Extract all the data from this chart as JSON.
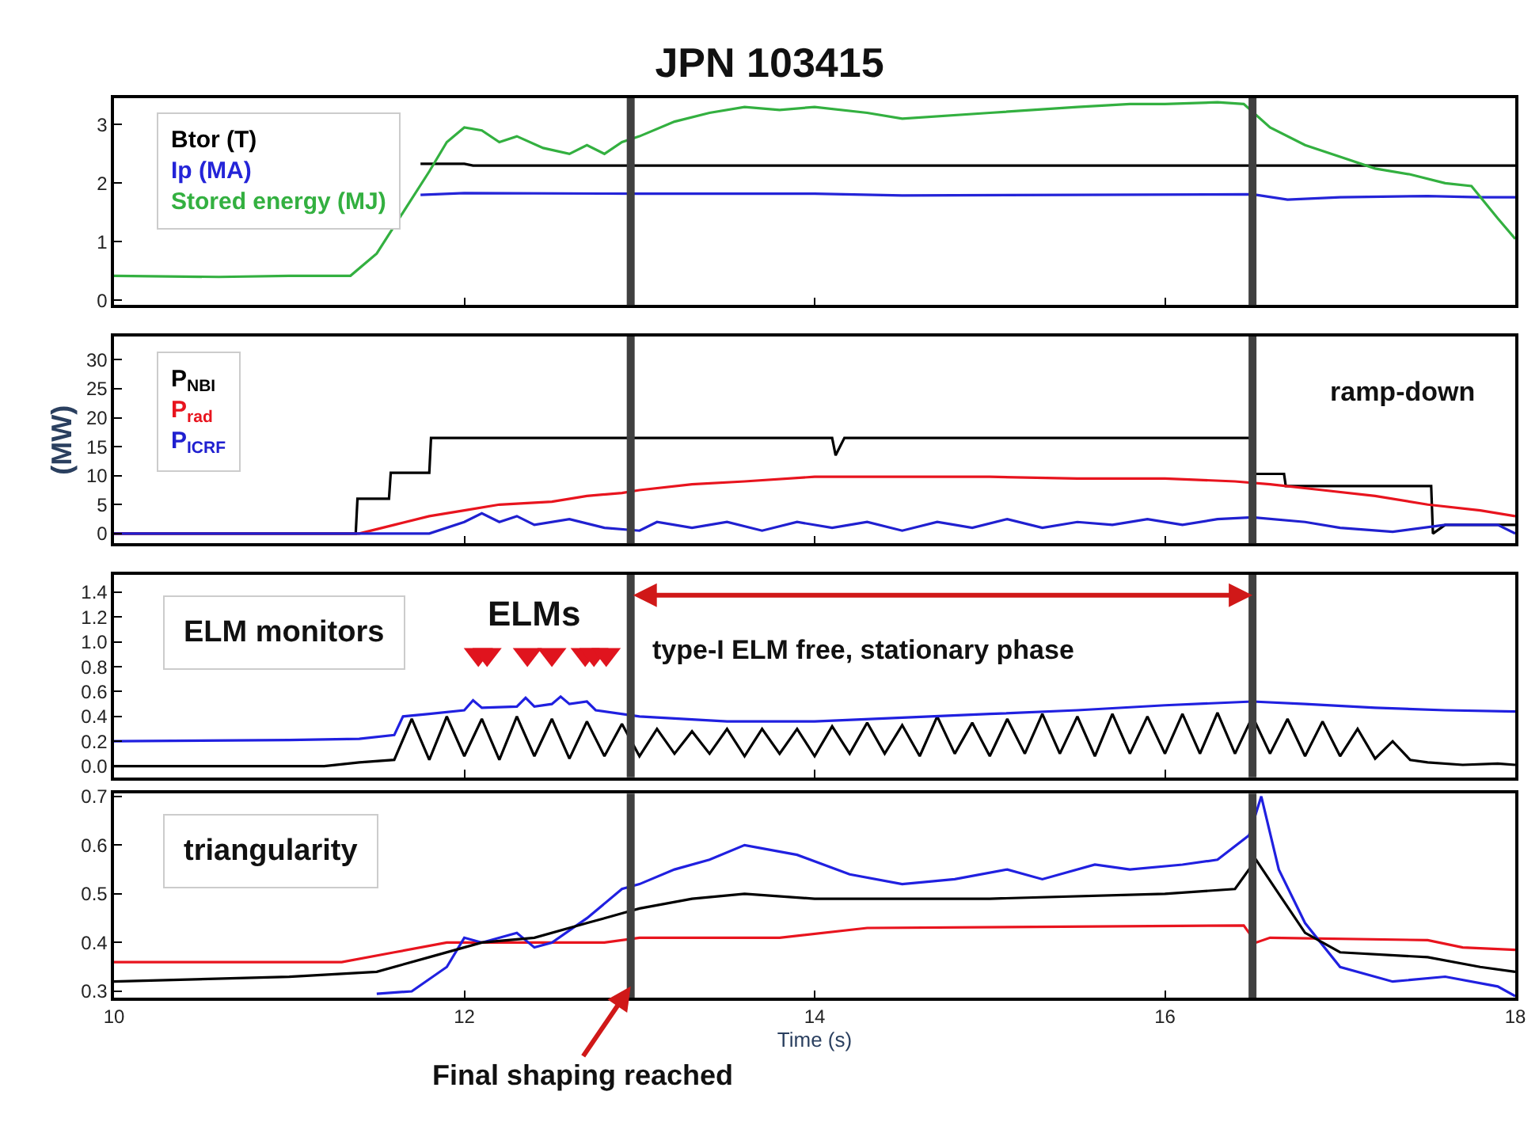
{
  "chart_data": [
    {
      "type": "line",
      "title": "JPN 103415",
      "xlim": [
        10,
        18
      ],
      "xticks": [
        10,
        12,
        14,
        16,
        18
      ],
      "ylim": [
        -0.08,
        3.45
      ],
      "yticks": [
        0,
        1,
        2,
        3
      ],
      "tick_labels": "y",
      "ref_lines": [
        {
          "axis": "x",
          "value": 12.95,
          "color": "#404040"
        },
        {
          "axis": "x",
          "value": 16.5,
          "color": "#404040"
        }
      ],
      "series": [
        {
          "name": "Btor (T)",
          "color": "#000000",
          "x": [
            11.75,
            12.0,
            12.05,
            18.0
          ],
          "values": [
            2.33,
            2.33,
            2.3,
            2.3
          ]
        },
        {
          "name": "Ip (MA)",
          "color": "#2424d8",
          "x": [
            11.75,
            12.0,
            13.0,
            14.0,
            14.5,
            15.5,
            16.5,
            16.7,
            17.0,
            17.5,
            17.8,
            18.0
          ],
          "values": [
            1.8,
            1.83,
            1.82,
            1.82,
            1.79,
            1.8,
            1.81,
            1.72,
            1.76,
            1.78,
            1.76,
            1.76
          ]
        },
        {
          "name": "Stored energy (MJ)",
          "color": "#33b040",
          "x": [
            10.0,
            10.6,
            11.0,
            11.35,
            11.5,
            11.65,
            11.8,
            11.9,
            12.0,
            12.1,
            12.2,
            12.3,
            12.45,
            12.6,
            12.7,
            12.8,
            12.9,
            13.0,
            13.2,
            13.4,
            13.6,
            13.8,
            14.0,
            14.3,
            14.5,
            15.0,
            15.5,
            15.8,
            16.0,
            16.3,
            16.45,
            16.6,
            16.8,
            17.0,
            17.2,
            17.4,
            17.6,
            17.75,
            17.9,
            18.0
          ],
          "values": [
            0.42,
            0.4,
            0.42,
            0.42,
            0.8,
            1.5,
            2.2,
            2.7,
            2.95,
            2.9,
            2.7,
            2.8,
            2.6,
            2.5,
            2.65,
            2.5,
            2.7,
            2.8,
            3.05,
            3.2,
            3.3,
            3.25,
            3.3,
            3.2,
            3.1,
            3.2,
            3.3,
            3.35,
            3.35,
            3.38,
            3.35,
            2.95,
            2.65,
            2.45,
            2.25,
            2.15,
            2.0,
            1.95,
            1.4,
            1.05
          ]
        }
      ]
    },
    {
      "type": "line",
      "xlim": [
        10,
        18
      ],
      "xticks": [
        10,
        12,
        14,
        16,
        18
      ],
      "ylim": [
        -1.7,
        34
      ],
      "yticks": [
        0,
        5,
        10,
        15,
        20,
        25,
        30
      ],
      "tick_labels": "y",
      "ylabel": "(MW)",
      "annotations": [
        "ramp-down"
      ],
      "ref_lines": [
        {
          "axis": "x",
          "value": 12.95,
          "color": "#404040"
        },
        {
          "axis": "x",
          "value": 16.5,
          "color": "#404040"
        }
      ],
      "series": [
        {
          "name": "P$_{NBI}$",
          "color": "#000000",
          "x": [
            10.0,
            11.38,
            11.39,
            11.57,
            11.58,
            11.8,
            11.81,
            14.1,
            14.12,
            14.17,
            16.49,
            16.5,
            16.68,
            16.69,
            17.52,
            17.53,
            17.6,
            18.0
          ],
          "values": [
            0,
            0,
            6,
            6,
            10.5,
            10.5,
            16.5,
            16.5,
            13.5,
            16.5,
            16.5,
            10.3,
            10.3,
            8.2,
            8.2,
            0,
            1.5,
            1.5
          ]
        },
        {
          "name": "P$_{rad}$",
          "color": "#e8141e",
          "x": [
            10.0,
            11.4,
            11.6,
            11.8,
            12.0,
            12.2,
            12.5,
            12.7,
            12.9,
            13.0,
            13.3,
            13.6,
            14.0,
            14.5,
            15.0,
            15.5,
            16.0,
            16.4,
            16.6,
            16.9,
            17.2,
            17.5,
            17.8,
            18.0
          ],
          "values": [
            0,
            0,
            1.5,
            3,
            4,
            5,
            5.5,
            6.5,
            7,
            7.5,
            8.5,
            9,
            9.8,
            9.8,
            9.8,
            9.5,
            9.5,
            9,
            8.5,
            7.5,
            6.5,
            5,
            4,
            3
          ]
        },
        {
          "name": "P$_{ICRF}$",
          "color": "#2020d0",
          "x": [
            10.0,
            11.8,
            12.0,
            12.1,
            12.2,
            12.3,
            12.4,
            12.6,
            12.8,
            13.0,
            13.1,
            13.3,
            13.5,
            13.7,
            13.9,
            14.1,
            14.3,
            14.5,
            14.7,
            14.9,
            15.1,
            15.3,
            15.5,
            15.7,
            15.9,
            16.1,
            16.3,
            16.5,
            16.8,
            17.0,
            17.3,
            17.6,
            17.9,
            18.0
          ],
          "values": [
            0,
            0,
            2,
            3.5,
            2,
            3,
            1.5,
            2.5,
            1,
            0.5,
            2,
            1,
            2,
            0.5,
            2,
            1,
            2,
            0.5,
            2,
            1,
            2.5,
            1,
            2,
            1.5,
            2.5,
            1.5,
            2.5,
            2.8,
            2,
            1,
            0.3,
            1.5,
            1.5,
            0
          ]
        }
      ]
    },
    {
      "type": "line",
      "xlim": [
        10,
        18
      ],
      "xticks": [
        10,
        12,
        14,
        16,
        18
      ],
      "ylim": [
        -0.09,
        1.54
      ],
      "yticks": [
        {
          "value": 0,
          "label": "0.0"
        },
        {
          "value": 0.2,
          "label": "0.2"
        },
        {
          "value": 0.4,
          "label": "0.4"
        },
        {
          "value": 0.6,
          "label": "0.6"
        },
        {
          "value": 0.8,
          "label": "0.8"
        },
        {
          "value": 1.0,
          "label": "1.0"
        },
        {
          "value": 1.2,
          "label": "1.2"
        },
        {
          "value": 1.4,
          "label": "1.4"
        }
      ],
      "tick_labels": "y",
      "annotations": [
        "ELM monitors",
        "ELMs",
        "type-I ELM free, stationary phase"
      ],
      "ref_lines": [
        {
          "axis": "x",
          "value": 12.95,
          "color": "#404040"
        },
        {
          "axis": "x",
          "value": 16.5,
          "color": "#404040"
        }
      ],
      "series": [
        {
          "color": "#000000",
          "x": [
            10.0,
            11.2,
            11.4,
            11.6,
            11.7,
            11.8,
            11.9,
            12.0,
            12.1,
            12.2,
            12.3,
            12.4,
            12.5,
            12.6,
            12.7,
            12.8,
            12.9,
            13.0,
            13.1,
            13.2,
            13.3,
            13.4,
            13.5,
            13.6,
            13.7,
            13.8,
            13.9,
            14.0,
            14.1,
            14.2,
            14.3,
            14.4,
            14.5,
            14.6,
            14.7,
            14.8,
            14.9,
            15.0,
            15.1,
            15.2,
            15.3,
            15.4,
            15.5,
            15.6,
            15.7,
            15.8,
            15.9,
            16.0,
            16.1,
            16.2,
            16.3,
            16.4,
            16.5,
            16.6,
            16.7,
            16.8,
            16.9,
            17.0,
            17.1,
            17.2,
            17.3,
            17.4,
            17.5,
            17.7,
            17.9,
            18.0
          ],
          "values": [
            0,
            0,
            0.03,
            0.05,
            0.38,
            0.05,
            0.4,
            0.08,
            0.38,
            0.05,
            0.4,
            0.08,
            0.38,
            0.06,
            0.36,
            0.08,
            0.34,
            0.08,
            0.3,
            0.1,
            0.28,
            0.1,
            0.3,
            0.08,
            0.3,
            0.1,
            0.3,
            0.08,
            0.32,
            0.1,
            0.35,
            0.1,
            0.33,
            0.08,
            0.4,
            0.1,
            0.35,
            0.08,
            0.38,
            0.1,
            0.42,
            0.1,
            0.4,
            0.08,
            0.42,
            0.1,
            0.4,
            0.1,
            0.42,
            0.1,
            0.43,
            0.1,
            0.4,
            0.1,
            0.38,
            0.08,
            0.36,
            0.08,
            0.3,
            0.06,
            0.2,
            0.05,
            0.03,
            0.01,
            0.02,
            0.01
          ]
        },
        {
          "color": "#2020e0",
          "x": [
            10.0,
            11.0,
            11.4,
            11.6,
            11.65,
            11.8,
            12.0,
            12.05,
            12.1,
            12.3,
            12.35,
            12.4,
            12.5,
            12.55,
            12.6,
            12.7,
            12.75,
            13.0,
            13.5,
            14.0,
            14.5,
            15.0,
            15.5,
            16.0,
            16.5,
            16.8,
            17.2,
            17.6,
            18.0
          ],
          "values": [
            0.2,
            0.21,
            0.22,
            0.25,
            0.4,
            0.42,
            0.45,
            0.53,
            0.47,
            0.48,
            0.55,
            0.48,
            0.5,
            0.56,
            0.5,
            0.52,
            0.45,
            0.4,
            0.36,
            0.36,
            0.39,
            0.42,
            0.45,
            0.49,
            0.52,
            0.5,
            0.47,
            0.45,
            0.44
          ]
        },
        {
          "type": "scatter",
          "marker": "triangle",
          "color": "#e0141e",
          "x": [
            12.08,
            12.13,
            12.36,
            12.5,
            12.69,
            12.74,
            12.81
          ],
          "values": [
            0.9,
            0.9,
            0.9,
            0.9,
            0.9,
            0.9,
            0.9
          ]
        }
      ]
    },
    {
      "type": "line",
      "xlim": [
        10,
        18
      ],
      "xticks": [
        10,
        12,
        14,
        16,
        18
      ],
      "ylim": [
        0.287,
        0.706
      ],
      "yticks": [
        {
          "value": 0.3,
          "label": "0.3"
        },
        {
          "value": 0.4,
          "label": "0.4"
        },
        {
          "value": 0.5,
          "label": "0.5"
        },
        {
          "value": 0.6,
          "label": "0.6"
        },
        {
          "value": 0.7,
          "label": "0.7"
        }
      ],
      "xlabel": "Time (s)",
      "annotations": [
        "triangularity",
        {
          "text": "Final shaping reached",
          "x": 12.95,
          "y": 0.31
        }
      ],
      "ref_lines": [
        {
          "axis": "x",
          "value": 12.95,
          "color": "#404040"
        },
        {
          "axis": "x",
          "value": 16.5,
          "color": "#404040"
        }
      ],
      "series": [
        {
          "color": "#e8141e",
          "x": [
            10.0,
            11.3,
            11.6,
            11.9,
            12.8,
            13.0,
            13.8,
            14.3,
            16.45,
            16.52,
            16.6,
            17.5,
            17.7,
            18.0
          ],
          "values": [
            0.36,
            0.36,
            0.38,
            0.4,
            0.4,
            0.41,
            0.41,
            0.43,
            0.435,
            0.4,
            0.41,
            0.405,
            0.39,
            0.385
          ]
        },
        {
          "color": "#2020e0",
          "x": [
            11.5,
            11.7,
            11.9,
            12.0,
            12.1,
            12.3,
            12.4,
            12.5,
            12.7,
            12.9,
            13.0,
            13.2,
            13.4,
            13.6,
            13.9,
            14.2,
            14.5,
            14.8,
            15.1,
            15.3,
            15.6,
            15.8,
            16.1,
            16.3,
            16.48,
            16.55,
            16.65,
            16.8,
            17.0,
            17.3,
            17.6,
            17.9,
            18.0
          ],
          "values": [
            0.295,
            0.3,
            0.35,
            0.41,
            0.4,
            0.42,
            0.39,
            0.4,
            0.45,
            0.51,
            0.52,
            0.55,
            0.57,
            0.6,
            0.58,
            0.54,
            0.52,
            0.53,
            0.55,
            0.53,
            0.56,
            0.55,
            0.56,
            0.57,
            0.62,
            0.7,
            0.55,
            0.44,
            0.35,
            0.32,
            0.33,
            0.31,
            0.29
          ]
        },
        {
          "color": "#000000",
          "x": [
            10.0,
            11.0,
            11.5,
            11.8,
            12.1,
            12.4,
            12.7,
            12.9,
            13.0,
            13.3,
            13.6,
            14.0,
            15.0,
            16.0,
            16.4,
            16.52,
            16.65,
            16.8,
            17.0,
            17.5,
            17.8,
            18.0
          ],
          "values": [
            0.32,
            0.33,
            0.34,
            0.37,
            0.4,
            0.41,
            0.44,
            0.46,
            0.47,
            0.49,
            0.5,
            0.49,
            0.49,
            0.5,
            0.51,
            0.57,
            0.5,
            0.42,
            0.38,
            0.37,
            0.35,
            0.34
          ]
        }
      ]
    }
  ]
}
